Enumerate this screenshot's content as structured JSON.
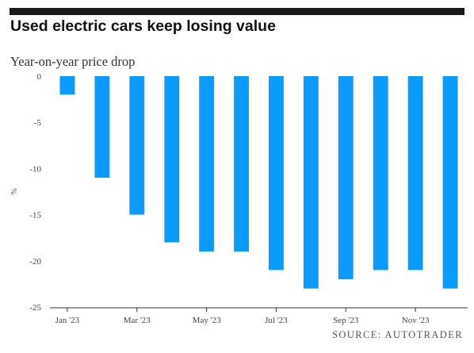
{
  "title": "Used electric cars keep losing value",
  "subtitle": "Year-on-year price drop",
  "source": "SOURCE: AUTOTRADER",
  "chart_data": {
    "type": "bar",
    "title": "Used electric cars keep losing value",
    "subtitle": "Year-on-year price drop",
    "ylabel": "%",
    "categories": [
      "Jan '23",
      "Feb '23",
      "Mar '23",
      "Apr '23",
      "May '23",
      "Jun '23",
      "Jul '23",
      "Aug '23",
      "Sep '23",
      "Oct '23",
      "Nov '23",
      "Dec '23"
    ],
    "values": [
      -2,
      -11,
      -15,
      -18,
      -19,
      -19,
      -21,
      -23,
      -22,
      -21,
      -21,
      -23
    ],
    "x_tick_labels": [
      "Jan '23",
      "Mar '23",
      "May '23",
      "Jul '23",
      "Sep '23",
      "Nov '23"
    ],
    "y_ticks": [
      0,
      -5,
      -10,
      -15,
      -20,
      -25
    ],
    "ylim": [
      -25,
      0
    ],
    "grid": false,
    "bar_color": "#0b9bff",
    "source": "SOURCE: AUTOTRADER"
  }
}
